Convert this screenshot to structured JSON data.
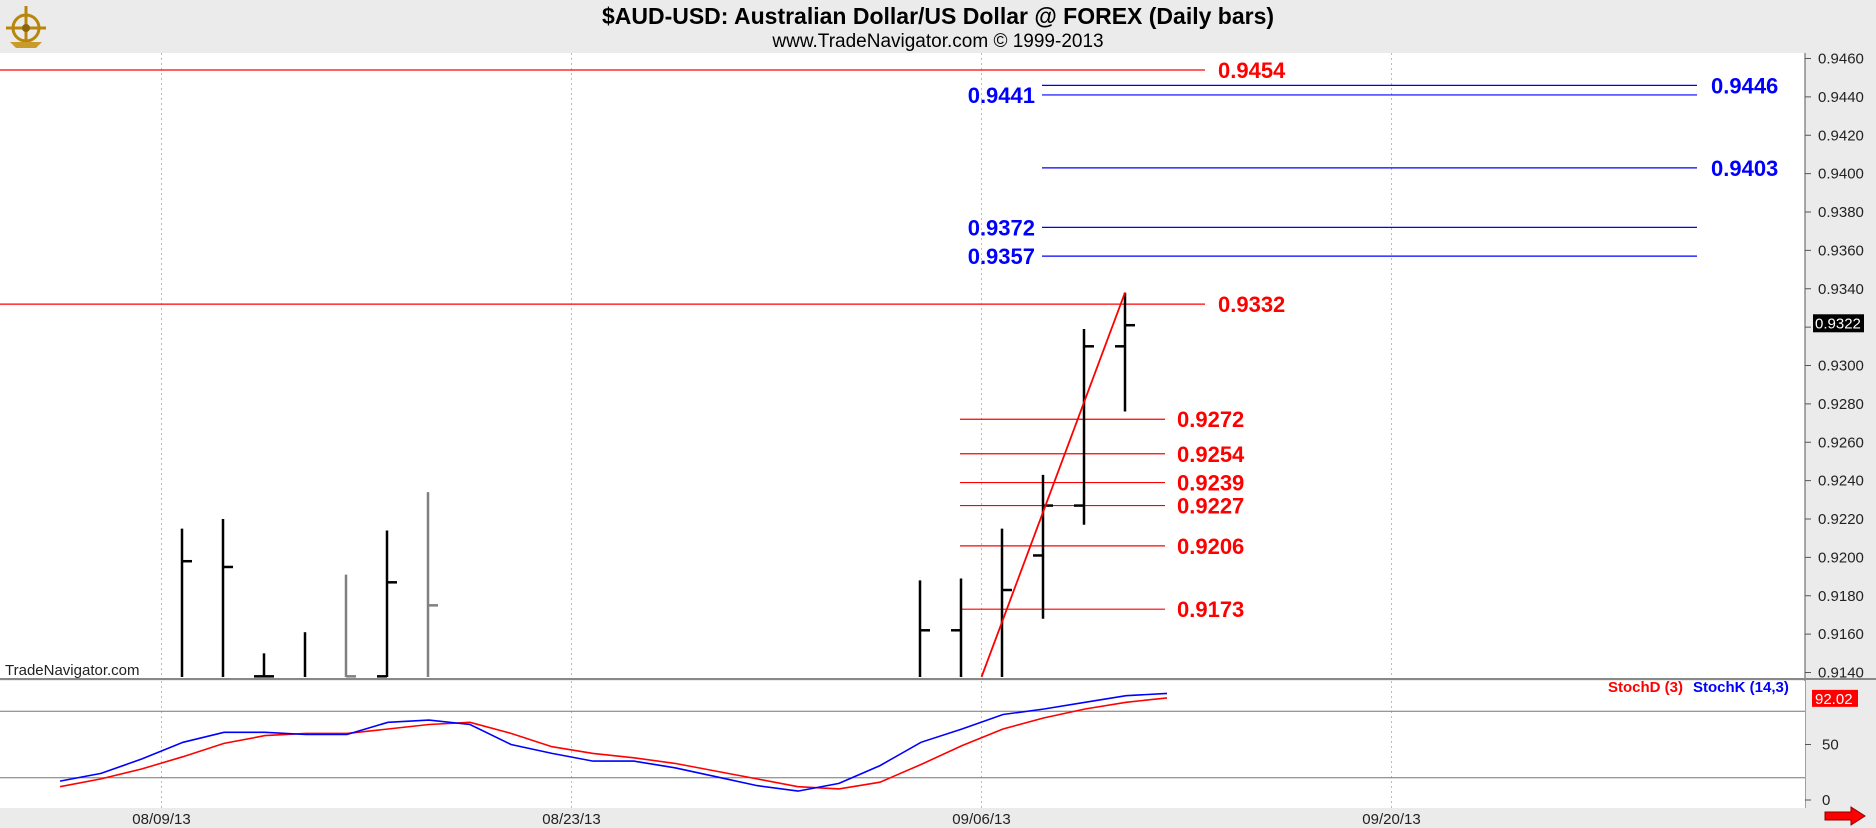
{
  "header": {
    "title": "$AUD-USD:  Australian Dollar/US Dollar @ FOREX  (Daily bars)",
    "subtitle": "www.TradeNavigator.com © 1999-2013"
  },
  "watermark": "TradeNavigator.com",
  "colors": {
    "background": "#ffffff",
    "chrome": "#ebebeb",
    "red": "#ff0000",
    "blue": "#0000ff",
    "bars": "#000000",
    "grey_bars": "#808080"
  },
  "chart_data": [
    {
      "type": "ohlc",
      "ylim": [
        0.9135,
        0.9465
      ],
      "yticks": [
        "0.9460",
        "0.9440",
        "0.9420",
        "0.9400",
        "0.9380",
        "0.9360",
        "0.9340",
        "0.9320",
        "0.9300",
        "0.9280",
        "0.9260",
        "0.9240",
        "0.9220",
        "0.9200",
        "0.9180",
        "0.9160",
        "0.9140"
      ],
      "ytick_values": [
        0.946,
        0.944,
        0.942,
        0.94,
        0.938,
        0.936,
        0.934,
        0.932,
        0.93,
        0.928,
        0.926,
        0.924,
        0.922,
        0.92,
        0.918,
        0.916,
        0.914
      ],
      "xticks": [
        "08/09/13",
        "08/23/13",
        "09/06/13",
        "09/20/13"
      ],
      "last_price": "0.9322",
      "last_price_value": 0.9322,
      "bars": [
        {
          "i": 4,
          "h": 0.9215,
          "l": 0.9135,
          "c": 0.9198,
          "color": "black"
        },
        {
          "i": 5,
          "h": 0.922,
          "l": 0.9135,
          "c": 0.9195,
          "color": "black"
        },
        {
          "i": 6,
          "h": 0.915,
          "l": 0.9135,
          "o": 0.9138,
          "c": 0.9138,
          "color": "black"
        },
        {
          "i": 7,
          "h": 0.9161,
          "l": 0.9135,
          "color": "black"
        },
        {
          "i": 8,
          "h": 0.9191,
          "l": 0.9135,
          "c": 0.9138,
          "color": "grey"
        },
        {
          "i": 9,
          "h": 0.9214,
          "l": 0.9135,
          "o": 0.9138,
          "c": 0.9187,
          "color": "black"
        },
        {
          "i": 10,
          "h": 0.9234,
          "l": 0.9135,
          "c": 0.9175,
          "color": "grey"
        },
        {
          "i": 22,
          "h": 0.9188,
          "l": 0.9135,
          "c": 0.9162,
          "color": "black"
        },
        {
          "i": 23,
          "h": 0.9189,
          "l": 0.9135,
          "o": 0.9162,
          "color": "black"
        },
        {
          "i": 24,
          "h": 0.9215,
          "l": 0.9135,
          "c": 0.9183,
          "color": "black"
        },
        {
          "i": 25,
          "h": 0.9243,
          "l": 0.9168,
          "o": 0.9201,
          "c": 0.9227,
          "color": "black"
        },
        {
          "i": 26,
          "h": 0.9319,
          "l": 0.9217,
          "o": 0.9227,
          "c": 0.931,
          "color": "black"
        },
        {
          "i": 27,
          "h": 0.9338,
          "l": 0.9276,
          "o": 0.931,
          "c": 0.9321,
          "color": "black"
        }
      ],
      "trendline": {
        "i1": 23.5,
        "v1": 0.9137,
        "i2": 27,
        "v2": 0.9338
      },
      "levels": [
        {
          "value": 0.9454,
          "label": "0.9454",
          "color": "red"
        },
        {
          "value": 0.9446,
          "label": "0.9446",
          "color": "blue"
        },
        {
          "value": 0.9441,
          "label": "0.9441",
          "color": "blue"
        },
        {
          "value": 0.9403,
          "label": "0.9403",
          "color": "blue"
        },
        {
          "value": 0.9372,
          "label": "0.9372",
          "color": "blue"
        },
        {
          "value": 0.9357,
          "label": "0.9357",
          "color": "blue"
        },
        {
          "value": 0.9332,
          "label": "0.9332",
          "color": "red"
        },
        {
          "value": 0.9272,
          "label": "0.9272",
          "color": "red"
        },
        {
          "value": 0.9254,
          "label": "0.9254",
          "color": "red"
        },
        {
          "value": 0.9239,
          "label": "0.9239",
          "color": "red"
        },
        {
          "value": 0.9227,
          "label": "0.9227",
          "color": "red"
        },
        {
          "value": 0.9206,
          "label": "0.9206",
          "color": "red"
        },
        {
          "value": 0.9173,
          "label": "0.9173",
          "color": "red"
        }
      ]
    },
    {
      "type": "line",
      "ylim": [
        0,
        100
      ],
      "yticks": [
        "50",
        "0"
      ],
      "ytick_values": [
        50,
        0
      ],
      "reference_lines": [
        80,
        20
      ],
      "legend": [
        "StochD (3)",
        "StochK (14,3)"
      ],
      "last_value": "92.02",
      "series": [
        {
          "name": "StochK (14,3)",
          "color": "blue",
          "x": [
            0,
            1,
            2,
            3,
            4,
            5,
            6,
            7,
            8,
            9,
            10,
            11,
            12,
            13,
            14,
            15,
            16,
            17,
            18,
            19,
            20,
            21,
            22,
            23,
            24,
            25,
            26,
            27
          ],
          "values": [
            17,
            24,
            37,
            52,
            61,
            61,
            59,
            59,
            70,
            72,
            68,
            50,
            42,
            35,
            35,
            29,
            21,
            13,
            8,
            15,
            31,
            52,
            64,
            77,
            82,
            88,
            94,
            96
          ]
        },
        {
          "name": "StochD (3)",
          "color": "red",
          "x": [
            0,
            1,
            2,
            3,
            4,
            5,
            6,
            7,
            8,
            9,
            10,
            11,
            12,
            13,
            14,
            15,
            16,
            17,
            18,
            19,
            20,
            21,
            22,
            23,
            24,
            25,
            26,
            27
          ],
          "values": [
            12,
            19,
            28,
            39,
            51,
            58,
            60,
            60,
            64,
            68,
            70,
            60,
            48,
            42,
            38,
            33,
            26,
            19,
            12,
            10,
            16,
            32,
            49,
            64,
            74,
            82,
            88,
            92
          ]
        }
      ]
    }
  ]
}
